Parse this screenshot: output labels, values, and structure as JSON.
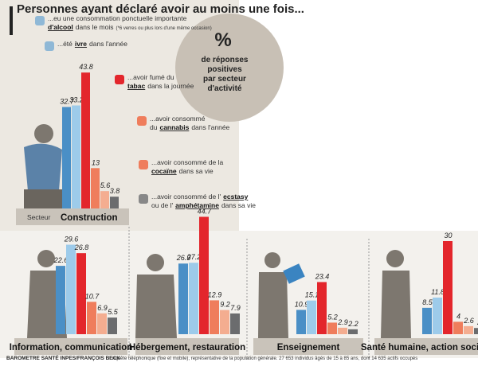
{
  "title": "Personnes ayant déclaré avoir au moins une fois...",
  "badge": {
    "symbol": "%",
    "lines": [
      "de réponses",
      "positives",
      "par secteur",
      "d'activité"
    ]
  },
  "legend": [
    {
      "lines": [
        [
          {
            "t": "...eu une consommation ponctuelle importante"
          }
        ],
        [
          {
            "t": "d'alcool",
            "b": true
          },
          {
            "t": "dans le mois"
          },
          {
            "t": "(*6 verres ou plus lors d'une même occasion)",
            "small": true
          }
        ]
      ]
    },
    {
      "lines": [
        [
          {
            "t": "...été"
          },
          {
            "t": "ivre",
            "b": true
          },
          {
            "t": "dans l'année"
          }
        ]
      ]
    },
    {
      "lines": [
        [
          {
            "t": "...avoir fumé du"
          }
        ],
        [
          {
            "t": "tabac",
            "b": true
          },
          {
            "t": "dans la journée"
          }
        ]
      ]
    },
    {
      "lines": [
        [
          {
            "t": "...avoir consommé"
          }
        ],
        [
          {
            "t": "du"
          },
          {
            "t": "cannabis",
            "b": true
          },
          {
            "t": "dans l'année"
          }
        ]
      ]
    },
    {
      "lines": [
        [
          {
            "t": "...avoir consommé de la"
          }
        ],
        [
          {
            "t": "cocaïne",
            "b": true
          },
          {
            "t": "dans sa vie"
          }
        ]
      ]
    },
    {
      "lines": [
        [
          {
            "t": "...avoir consommé de l'"
          },
          {
            "t": "ecstasy",
            "b": true
          }
        ],
        [
          {
            "t": "ou de l'"
          },
          {
            "t": "amphétamine",
            "b": true
          },
          {
            "t": "dans sa vie"
          }
        ]
      ]
    }
  ],
  "chart_data": [
    {
      "type": "bar",
      "title": "Construction",
      "axis_label": "Secteur",
      "values": [
        32.7,
        33.2,
        43.8,
        13,
        5.6,
        3.8
      ],
      "colors": [
        "#4a8fc6",
        "#9dcbea",
        "#e3262c",
        "#ef7d5c",
        "#f4ad90",
        "#6b6c6e"
      ]
    },
    {
      "type": "bar",
      "title": "Information, communication",
      "values": [
        22.6,
        29.6,
        26.8,
        10.7,
        6.9,
        5.5
      ],
      "colors": [
        "#4a8fc6",
        "#9dcbea",
        "#e3262c",
        "#ef7d5c",
        "#f4ad90",
        "#6b6c6e"
      ]
    },
    {
      "type": "bar",
      "title": "Hébergement, restauration",
      "values": [
        26.9,
        27.2,
        44.7,
        12.9,
        9.2,
        7.9
      ],
      "colors": [
        "#4a8fc6",
        "#9dcbea",
        "#e3262c",
        "#ef7d5c",
        "#f4ad90",
        "#6b6c6e"
      ]
    },
    {
      "type": "bar",
      "title": "Enseignement",
      "values": [
        10.9,
        15.1,
        23.4,
        5.2,
        2.9,
        2.2
      ],
      "colors": [
        "#4a8fc6",
        "#9dcbea",
        "#e3262c",
        "#ef7d5c",
        "#f4ad90",
        "#6b6c6e"
      ]
    },
    {
      "type": "bar",
      "title": "Santé humaine, action sociale",
      "values": [
        8.5,
        11.8,
        30,
        4,
        2.6,
        2
      ],
      "colors": [
        "#4a8fc6",
        "#9dcbea",
        "#e3262c",
        "#ef7d5c",
        "#f4ad90",
        "#6b6c6e"
      ]
    }
  ],
  "footer": {
    "source": "BAROMETRE SANTÉ INPES/FRANÇOIS BECK",
    "note": "Enquête téléphonique (fixe et mobile), représentative de la population générale. 27 653 individus âgés de 15 à 85 ans, dont 14 635 actifs occupés"
  }
}
